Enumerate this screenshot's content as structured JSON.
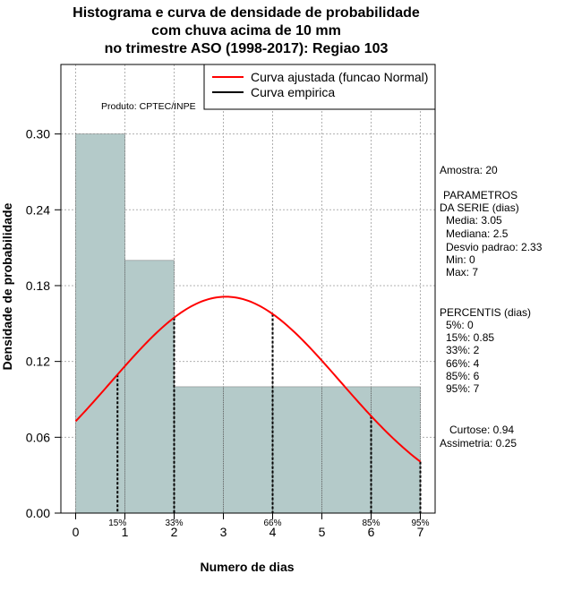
{
  "chart_data": {
    "type": "bar",
    "title_lines": [
      "Histograma e curva de densidade de probabilidade",
      "com chuva acima de 10 mm",
      "no trimestre ASO (1998-2017): Regiao 103"
    ],
    "xlabel": "Numero de dias",
    "ylabel": "Densidade de probabilidade",
    "xlim": [
      -0.3,
      7.3
    ],
    "ylim": [
      0,
      0.355
    ],
    "x_ticks": [
      "0",
      "1",
      "2",
      "3",
      "4",
      "5",
      "6",
      "7"
    ],
    "y_ticks": [
      "0.00",
      "0.06",
      "0.12",
      "0.18",
      "0.24",
      "0.30"
    ],
    "bins": [
      {
        "from": 0,
        "to": 1,
        "density": 0.3
      },
      {
        "from": 1,
        "to": 2,
        "density": 0.2
      },
      {
        "from": 2,
        "to": 3,
        "density": 0.1
      },
      {
        "from": 3,
        "to": 4,
        "density": 0.1
      },
      {
        "from": 4,
        "to": 5,
        "density": 0.1
      },
      {
        "from": 5,
        "to": 6,
        "density": 0.1
      },
      {
        "from": 6,
        "to": 7,
        "density": 0.1
      }
    ],
    "normal_fit": {
      "mean": 3.05,
      "sd": 2.33
    },
    "percentile_markers": [
      {
        "x": 0.85,
        "label": "15%"
      },
      {
        "x": 2,
        "label": "33%"
      },
      {
        "x": 4,
        "label": "66%"
      },
      {
        "x": 6,
        "label": "85%"
      },
      {
        "x": 7,
        "label": "95%"
      }
    ],
    "legend": [
      {
        "label": "Curva ajustada (funcao Normal)",
        "color": "#ff0000"
      },
      {
        "label": "Curva empirica",
        "color": "#000000"
      }
    ],
    "legend_position": "top-right",
    "annotation": "Produto: CPTEC/INPE",
    "grid": true,
    "bar_color": "#b4cac9"
  },
  "stats": {
    "amostra": "Amostra: 20",
    "parametros_title_1": "PARAMETROS",
    "parametros_title_2": "DA SERIE (dias)",
    "media": "Media: 3.05",
    "mediana": "Mediana: 2.5",
    "desvio": "Desvio padrao: 2.33",
    "min": "Min: 0",
    "max": "Max: 7",
    "percentis_title": "PERCENTIS (dias)",
    "p5": "5%: 0",
    "p15": "15%: 0.85",
    "p33": "33%: 2",
    "p66": "66%: 4",
    "p85": "85%: 6",
    "p95": "95%: 7",
    "curtose": "Curtose: 0.94",
    "assimetria": "Assimetria: 0.25"
  }
}
